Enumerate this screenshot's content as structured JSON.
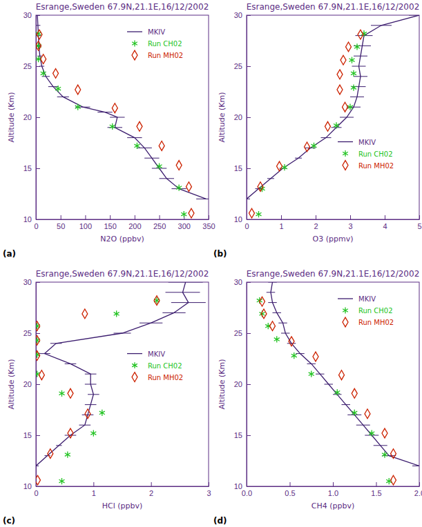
{
  "chart_data": [
    {
      "type": "line",
      "title": "Esrange,Sweden 67.9N,21.1E,16/12/2002",
      "annotation": "(a)",
      "x_label": "N2O (ppbv)",
      "y_label": "Altitude (Km)",
      "xlim": [
        0,
        350
      ],
      "xticks": [
        0,
        50,
        100,
        150,
        200,
        250,
        300,
        350
      ],
      "ylim": [
        10,
        30
      ],
      "yticks": [
        10,
        15,
        20,
        25,
        30
      ],
      "legend": "upper right",
      "series": [
        {
          "name": "MKIV",
          "color": "#3b1c6e",
          "marker": "none",
          "line_style": "solid",
          "x": [
            3,
            4,
            5,
            6,
            8,
            12,
            20,
            35,
            55,
            95,
            140,
            165,
            160,
            200,
            220,
            235,
            250,
            265,
            290,
            345
          ],
          "y": [
            30,
            29,
            28,
            27,
            26,
            25,
            24,
            23,
            22,
            21,
            20.5,
            20,
            19,
            18,
            17,
            16,
            15,
            14,
            13,
            12
          ],
          "errors": [
            5,
            5,
            5,
            5,
            5,
            5,
            8,
            10,
            12,
            15,
            15,
            15,
            15,
            15,
            15,
            15,
            15,
            15,
            15,
            20
          ]
        },
        {
          "name": "Run CH02",
          "color": "#22c322",
          "marker": "asterisk",
          "line_style": "none",
          "x": [
            5,
            5,
            5,
            15,
            45,
            85,
            155,
            205,
            250,
            290,
            300
          ],
          "y": [
            28.2,
            27,
            25.7,
            24.3,
            22.8,
            21,
            19.1,
            17.2,
            15.2,
            13.1,
            10.5
          ]
        },
        {
          "name": "Run MH02",
          "color": "#cc2200",
          "marker": "diamond",
          "line_style": "none",
          "x": [
            7,
            5,
            15,
            40,
            85,
            160,
            210,
            255,
            290,
            310,
            315
          ],
          "y": [
            28.1,
            27,
            25.7,
            24.3,
            22.7,
            20.9,
            19.1,
            17.2,
            15.3,
            13.2,
            10.6
          ]
        }
      ]
    },
    {
      "type": "line",
      "title": "Esrange,Sweden 67.9N,21.1E,16/12/2002",
      "annotation": "(b)",
      "x_label": "O3 (ppmv)",
      "y_label": "Altitude (Km)",
      "xlim": [
        0,
        5
      ],
      "xticks": [
        0,
        1,
        2,
        3,
        4,
        5
      ],
      "ylim": [
        10,
        30
      ],
      "yticks": [
        10,
        15,
        20,
        25,
        30
      ],
      "legend": "lower right",
      "series": [
        {
          "name": "MKIV",
          "color": "#3b1c6e",
          "marker": "none",
          "line_style": "solid",
          "x": [
            5.0,
            3.9,
            3.4,
            3.35,
            3.3,
            3.25,
            3.3,
            3.25,
            3.2,
            3.1,
            2.9,
            2.6,
            2.3,
            1.85,
            1.5,
            1.05,
            0.7,
            0.35,
            0.0
          ],
          "y": [
            30,
            29,
            28,
            27,
            26,
            25,
            24,
            23,
            22,
            21,
            20,
            19,
            18,
            17,
            16,
            15,
            14,
            13,
            12
          ],
          "errors": [
            0.3,
            0.3,
            0.25,
            0.25,
            0.2,
            0.2,
            0.2,
            0.2,
            0.2,
            0.2,
            0.2,
            0.15,
            0.15,
            0.15,
            0.1,
            0.1,
            0.1,
            0.1,
            0.1
          ]
        },
        {
          "name": "Run CH02",
          "color": "#22c322",
          "marker": "asterisk",
          "line_style": "none",
          "x": [
            3.4,
            3.2,
            3.05,
            3.1,
            3.1,
            3.0,
            2.6,
            1.95,
            1.1,
            0.45,
            0.35
          ],
          "y": [
            28.2,
            26.9,
            25.6,
            24.3,
            22.9,
            21,
            19.2,
            17.2,
            15.1,
            13,
            10.5
          ]
        },
        {
          "name": "Run MH02",
          "color": "#cc2200",
          "marker": "diamond",
          "line_style": "none",
          "x": [
            3.3,
            2.95,
            2.8,
            2.7,
            2.7,
            2.85,
            2.35,
            1.75,
            0.95,
            0.4,
            0.15
          ],
          "y": [
            28.1,
            26.9,
            25.6,
            24.2,
            22.7,
            21,
            19.1,
            17.1,
            15.2,
            13.2,
            10.6
          ]
        }
      ]
    },
    {
      "type": "line",
      "title": "Esrange,Sweden 67.9N,21.1E,16/12/2002",
      "annotation": "(c)",
      "x_label": "HCl (ppbv)",
      "y_label": "Altitude (Km)",
      "xlim": [
        0,
        3
      ],
      "xticks": [
        0,
        1,
        2,
        3
      ],
      "ylim": [
        10,
        30
      ],
      "yticks": [
        10,
        15,
        20,
        25,
        30
      ],
      "legend": "center right",
      "series": [
        {
          "name": "MKIV",
          "color": "#3b1c6e",
          "marker": "none",
          "line_style": "solid",
          "x": [
            2.6,
            2.55,
            2.65,
            2.4,
            2.0,
            1.5,
            0.35,
            0.15,
            0.6,
            0.95,
            0.95,
            1.0,
            0.95,
            0.9,
            0.85,
            0.6,
            0.4,
            0.2,
            0.0
          ],
          "y": [
            30,
            29,
            28,
            27,
            26,
            25,
            24,
            23,
            22,
            21,
            20,
            19,
            18,
            17,
            16,
            15,
            14,
            13,
            12
          ],
          "errors": [
            0.3,
            0.3,
            0.3,
            0.2,
            0.2,
            0.15,
            0.1,
            0.1,
            0.1,
            0.1,
            0.1,
            0.1,
            0.1,
            0.1,
            0.1,
            0.1,
            0.05,
            0.05,
            0.05
          ]
        },
        {
          "name": "Run CH02",
          "color": "#22c322",
          "marker": "asterisk",
          "line_style": "none",
          "x": [
            2.1,
            1.4,
            0.02,
            0.02,
            0.02,
            0.02,
            0.45,
            1.15,
            1.0,
            0.55,
            0.45
          ],
          "y": [
            28.2,
            26.9,
            25.7,
            24.3,
            22.9,
            21,
            19.1,
            17.2,
            15.2,
            13.1,
            10.5
          ]
        },
        {
          "name": "Run MH02",
          "color": "#cc2200",
          "marker": "diamond",
          "line_style": "none",
          "x": [
            2.1,
            0.85,
            0.02,
            0.02,
            0.02,
            0.1,
            0.6,
            0.9,
            0.6,
            0.25,
            0.03
          ],
          "y": [
            28.2,
            26.9,
            25.7,
            24.3,
            22.8,
            20.9,
            19.1,
            17.1,
            15.2,
            13.2,
            10.6
          ]
        }
      ]
    },
    {
      "type": "line",
      "title": "Esrange,Sweden 67.9N,21.1E,16/12/2002",
      "annotation": "(d)",
      "x_label": "CH4 (ppbv)",
      "y_label": "Altitude (Km)",
      "xlim": [
        0,
        2
      ],
      "xticks": [
        {
          "value": 0,
          "label": "0.0"
        },
        {
          "value": 0.5,
          "label": "0.5"
        },
        {
          "value": 1,
          "label": "1.0"
        },
        {
          "value": 1.5,
          "label": "1.5"
        },
        {
          "value": 2,
          "label": "2.0"
        }
      ],
      "ylim": [
        10,
        30
      ],
      "yticks": [
        10,
        15,
        20,
        25,
        30
      ],
      "legend": "upper right",
      "series": [
        {
          "name": "MKIV",
          "color": "#3b1c6e",
          "marker": "none",
          "line_style": "solid",
          "x": [
            0.3,
            0.28,
            0.3,
            0.35,
            0.42,
            0.45,
            0.52,
            0.62,
            0.75,
            0.85,
            0.95,
            1.05,
            1.15,
            1.25,
            1.35,
            1.45,
            1.55,
            1.65,
            2.0
          ],
          "y": [
            30,
            29,
            28,
            27,
            26,
            25,
            24,
            23,
            22,
            21,
            20,
            19,
            18,
            17,
            16,
            15,
            14,
            13,
            12
          ],
          "errors": [
            0.05,
            0.05,
            0.05,
            0.05,
            0.05,
            0.05,
            0.05,
            0.05,
            0.05,
            0.05,
            0.05,
            0.05,
            0.05,
            0.08,
            0.08,
            0.08,
            0.08,
            0.08,
            0.08
          ]
        },
        {
          "name": "Run CH02",
          "color": "#22c322",
          "marker": "asterisk",
          "line_style": "none",
          "x": [
            0.15,
            0.18,
            0.25,
            0.35,
            0.55,
            0.75,
            1.05,
            1.25,
            1.45,
            1.6,
            1.65
          ],
          "y": [
            28.2,
            26.9,
            25.7,
            24.4,
            22.8,
            21,
            19.2,
            17.2,
            15.2,
            13.1,
            10.5
          ]
        },
        {
          "name": "Run MH02",
          "color": "#cc2200",
          "marker": "diamond",
          "line_style": "none",
          "x": [
            0.18,
            0.2,
            0.3,
            0.52,
            0.8,
            1.1,
            1.25,
            1.4,
            1.6,
            1.7,
            1.7
          ],
          "y": [
            28.1,
            26.9,
            25.7,
            24.2,
            22.7,
            20.9,
            19.1,
            17.1,
            15.2,
            13.2,
            10.6
          ]
        }
      ]
    }
  ]
}
